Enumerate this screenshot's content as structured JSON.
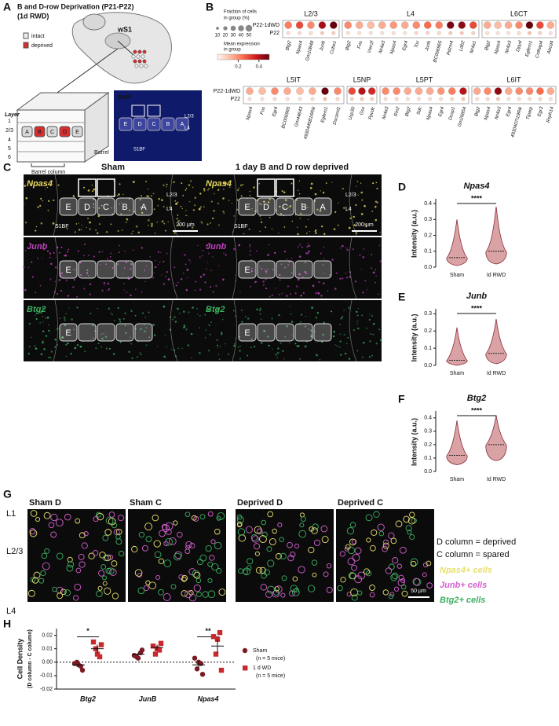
{
  "figure": {
    "A": {
      "letter": "A",
      "title": "B and D-row Deprivation (P21-P22)",
      "subtitle": "(1d RWD)",
      "legend": [
        "intact",
        "deprived"
      ],
      "area": "wS1",
      "layer_title": "Layer",
      "layers": [
        "1",
        "2/3",
        "4",
        "5",
        "6"
      ],
      "barrels": [
        "A",
        "B",
        "C",
        "D",
        "E"
      ],
      "barrel": "Barrel",
      "barrel_column": "Barrel column",
      "dapi": "DAPI",
      "dapi_barrels": [
        "E",
        "D",
        "C",
        "B",
        "A"
      ],
      "dapi_layers": [
        "L2/3",
        "L4"
      ],
      "region": "S1BF"
    },
    "B": {
      "letter": "B",
      "size_title": [
        "Fraction of cells",
        "in group (%)"
      ],
      "size_ticks": [
        10,
        20,
        30,
        40,
        50
      ],
      "color_title": [
        "Mean expression",
        "in group"
      ],
      "color_ticks": [
        0.2,
        0.4
      ],
      "color_range": [
        0,
        0.5
      ],
      "rows": [
        "P22-1dWD",
        "P22"
      ],
      "groups": [
        {
          "name": "L2/3",
          "genes": [
            "Btg2",
            "Npas4",
            "Gm10848",
            "Junb",
            "Ccbe1"
          ],
          "expr": [
            [
              0.22,
              0.3,
              0.2,
              0.42,
              0.5
            ],
            [
              0.05,
              0.06,
              0.05,
              0.1,
              0.08
            ]
          ]
        },
        {
          "name": "L4",
          "genes": [
            "Btg2",
            "Fos",
            "Vwc2l",
            "Nr4a3",
            "Npas4",
            "Egr4",
            "Tox",
            "Junb",
            "BC006965",
            "Pdzm4",
            "Ldb2",
            "Nr4a1"
          ],
          "expr": [
            [
              0.2,
              0.15,
              0.12,
              0.15,
              0.18,
              0.15,
              0.2,
              0.25,
              0.22,
              0.48,
              0.45,
              0.3
            ],
            [
              0.05,
              0.04,
              0.04,
              0.04,
              0.05,
              0.04,
              0.06,
              0.07,
              0.06,
              0.1,
              0.1,
              0.08
            ]
          ]
        },
        {
          "name": "L6CT",
          "genes": [
            "Btg2",
            "Npas4",
            "Nr4a3",
            "Dpyd",
            "Egfem1",
            "Cnthap4",
            "Abcd4"
          ],
          "expr": [
            [
              0.15,
              0.12,
              0.15,
              0.2,
              0.5,
              0.3,
              0.15
            ],
            [
              0.05,
              0.04,
              0.04,
              0.05,
              0.12,
              0.08,
              0.04
            ]
          ]
        },
        {
          "name": "L5IT",
          "genes": [
            "Npas4",
            "Fos",
            "Egr4",
            "BC006965",
            "Gm44643",
            "4930445B16Rik",
            "Egfem1",
            "Dscaml1"
          ],
          "expr": [
            [
              0.15,
              0.12,
              0.2,
              0.15,
              0.12,
              0.15,
              0.5,
              0.2
            ],
            [
              0.04,
              0.04,
              0.05,
              0.04,
              0.04,
              0.05,
              0.12,
              0.06
            ]
          ]
        },
        {
          "name": "L5NP",
          "genes": [
            "Usp30",
            "Gss",
            "Ppcdc"
          ],
          "expr": [
            [
              0.3,
              0.4,
              0.35
            ],
            [
              0.08,
              0.1,
              0.08
            ]
          ]
        },
        {
          "name": "L5PT",
          "genes": [
            "Nr4a3",
            "Rin2",
            "Btg2",
            "Sdc",
            "Npas4",
            "Egr4",
            "Dusp1",
            "Gm26854"
          ],
          "expr": [
            [
              0.2,
              0.2,
              0.15,
              0.15,
              0.15,
              0.18,
              0.22,
              0.4
            ],
            [
              0.05,
              0.05,
              0.04,
              0.04,
              0.04,
              0.05,
              0.06,
              0.1
            ]
          ]
        },
        {
          "name": "L6IT",
          "genes": [
            "Btg2",
            "Npas4",
            "Nr4a3",
            "Egr4",
            "4930407I19Rik",
            "Tiparp",
            "Egr3",
            "Rsph14"
          ],
          "expr": [
            [
              0.15,
              0.2,
              0.45,
              0.15,
              0.2,
              0.2,
              0.25,
              0.15
            ],
            [
              0.04,
              0.05,
              0.1,
              0.04,
              0.05,
              0.05,
              0.06,
              0.04
            ]
          ]
        }
      ]
    },
    "C": {
      "letter": "C",
      "columns": [
        "Sham",
        "1 day B and D row deprived"
      ],
      "genes": [
        "Npas4",
        "Junb",
        "Btg2"
      ],
      "barrels": [
        "E",
        "D",
        "C",
        "B",
        "A"
      ],
      "layers": [
        "L2/3",
        "L4"
      ],
      "region": "S1BF",
      "scale": "200 μm"
    },
    "violins": [
      {
        "letter": "D",
        "title": "Npas4",
        "ylabel": "Intensity (a.u.)",
        "categories": [
          "Sham",
          "Id RWD"
        ],
        "values": [
          0.06,
          0.1
        ],
        "ranges": [
          [
            0.01,
            0.3
          ],
          [
            0.02,
            0.38
          ]
        ],
        "ylim": [
          0,
          0.42
        ],
        "yticks": [
          {
            "value": 0,
            "label": "0.0"
          },
          0.1,
          0.2,
          0.3,
          0.4
        ],
        "significance": "****"
      },
      {
        "letter": "E",
        "title": "Junb",
        "ylabel": "Intensity (a.u.)",
        "categories": [
          "Sham",
          "Id RWD"
        ],
        "values": [
          0.03,
          0.07
        ],
        "ranges": [
          [
            0,
            0.22
          ],
          [
            0.01,
            0.27
          ]
        ],
        "ylim": [
          0,
          0.32
        ],
        "yticks": [
          {
            "value": 0,
            "label": "0.0"
          },
          0.1,
          0.2,
          0.3
        ],
        "significance": "****"
      },
      {
        "letter": "F",
        "title": "Btg2",
        "ylabel": "Intensity (a.u.)",
        "categories": [
          "Sham",
          "Id RWD"
        ],
        "values": [
          0.12,
          0.2
        ],
        "ranges": [
          [
            0.05,
            0.38
          ],
          [
            0.08,
            0.42
          ]
        ],
        "ylim": [
          0,
          0.44
        ],
        "yticks": [
          {
            "value": 0,
            "label": "0.0"
          },
          0.1,
          0.2,
          0.3,
          0.4
        ],
        "significance": "****"
      }
    ],
    "G": {
      "letter": "G",
      "titles": [
        "Sham D",
        "Sham C",
        "Deprived D",
        "Deprived C"
      ],
      "layers": [
        "L1",
        "L2/3",
        "L4"
      ],
      "notes": [
        "D column = deprived",
        "C column = spared"
      ],
      "cells": [
        "Npas4+ cells",
        "Junb+ cells",
        "Btg2+ cells"
      ],
      "scale": "50 μm"
    },
    "H": {
      "letter": "H",
      "type": "scatter",
      "ylabel": [
        "Cell Density",
        "(D column - C column)"
      ],
      "categories": [
        "Btg2",
        "JunB",
        "Npas4"
      ],
      "ylim": [
        -0.02,
        0.025
      ],
      "yticks": [
        0.02,
        0.01,
        {
          "value": 0,
          "label": "0.00"
        },
        -0.01,
        -0.02
      ],
      "series": [
        {
          "name": "Sham",
          "note": "(n = 5 mice)",
          "color": "#7b1a22",
          "marker": "circle",
          "values": [
            [
              -0.001,
              -0.003,
              0.0,
              -0.006,
              -0.002
            ],
            [
              0.005,
              0.007,
              0.004,
              0.009,
              0.003
            ],
            [
              0.003,
              -0.001,
              -0.005,
              -0.009,
              0.0
            ]
          ],
          "means": [
            -0.002,
            0.006,
            -0.002
          ],
          "sems": [
            0.001,
            0.001,
            0.003
          ]
        },
        {
          "name": "1 d  WD",
          "note": "(n = 5 mice)",
          "color": "#c9282d",
          "marker": "square",
          "values": [
            [
              0.015,
              0.004,
              0.01,
              0.013,
              0.006
            ],
            [
              0.012,
              0.009,
              0.006,
              0.014,
              0.01
            ],
            [
              0.019,
              0.022,
              0.006,
              -0.006,
              0.017
            ]
          ],
          "means": [
            0.01,
            0.011,
            0.012
          ],
          "sems": [
            0.003,
            0.002,
            0.005
          ]
        }
      ],
      "significance": [
        "*",
        null,
        "**"
      ]
    }
  }
}
